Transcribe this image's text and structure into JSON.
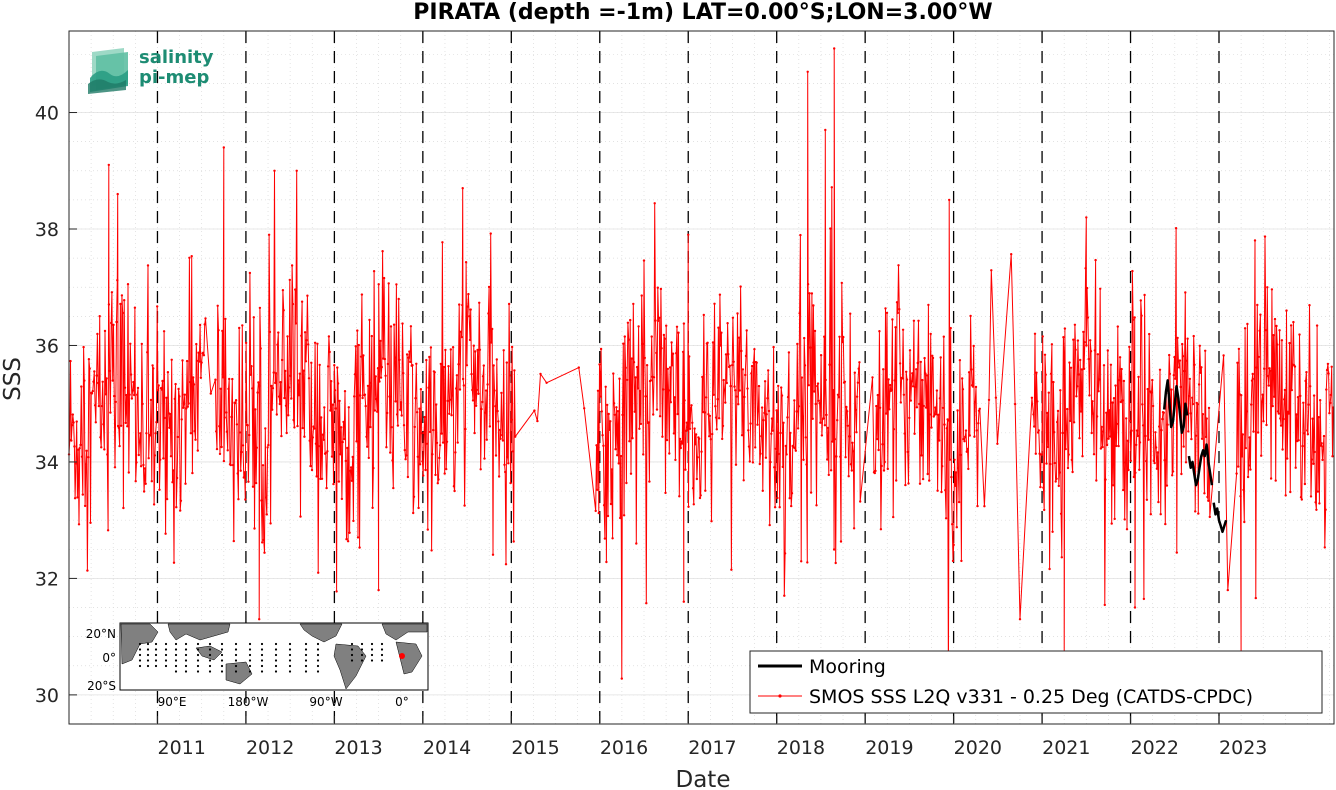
{
  "chart_data": {
    "type": "line",
    "title": "PIRATA (depth =-1m) LAT=0.00°S;LON=3.00°W",
    "xlabel": "Date",
    "ylabel": "SSS",
    "xlim": [
      2010.0,
      2024.3
    ],
    "ylim": [
      29.5,
      41.4
    ],
    "x_ticks": [
      "2011",
      "2012",
      "2013",
      "2014",
      "2015",
      "2016",
      "2017",
      "2018",
      "2019",
      "2020",
      "2021",
      "2022",
      "2023"
    ],
    "y_ticks": [
      30,
      32,
      34,
      36,
      38,
      40
    ],
    "grid": true,
    "year_boundaries_dashed": [
      2011,
      2012,
      2013,
      2014,
      2015,
      2016,
      2017,
      2018,
      2019,
      2020,
      2021,
      2022,
      2023
    ],
    "legend_position": "bottom-right",
    "series": [
      {
        "name": "Mooring",
        "color": "#000000",
        "segments": [
          {
            "x": [
              2022.38,
              2022.4,
              2022.42,
              2022.44,
              2022.46,
              2022.48,
              2022.5,
              2022.52,
              2022.54,
              2022.56,
              2022.58,
              2022.6,
              2022.62,
              2022.64
            ],
            "y": [
              34.9,
              35.2,
              35.4,
              35.0,
              34.6,
              34.7,
              35.0,
              35.3,
              35.1,
              34.8,
              34.5,
              34.6,
              35.0,
              34.8
            ]
          },
          {
            "x": [
              2022.66,
              2022.68,
              2022.7,
              2022.72,
              2022.74,
              2022.76,
              2022.78,
              2022.8,
              2022.82,
              2022.84,
              2022.86,
              2022.88,
              2022.9,
              2022.92
            ],
            "y": [
              34.1,
              33.9,
              34.0,
              33.8,
              33.6,
              33.7,
              33.9,
              34.1,
              34.2,
              34.1,
              34.3,
              34.0,
              33.8,
              33.6
            ]
          },
          {
            "x": [
              2022.94,
              2022.96,
              2022.98,
              2023.0,
              2023.02,
              2023.04,
              2023.06,
              2023.08
            ],
            "y": [
              33.3,
              33.1,
              33.2,
              33.0,
              32.9,
              32.8,
              32.9,
              33.0
            ]
          }
        ]
      },
      {
        "name": "SMOS SSS L2Q v331 - 0.25 Deg (CATDS-CPDC)",
        "color": "#ff0000",
        "style": "line-with-dot-markers",
        "x_start": 2010.0,
        "x_end": 2024.3,
        "n_points": 1650,
        "mean": 34.9,
        "std": 0.95,
        "seasonal_amplitude": 0.5,
        "gaps": [
          [
            2011.55,
            2011.65
          ],
          [
            2015.05,
            2015.95
          ],
          [
            2018.95,
            2019.1
          ],
          [
            2020.3,
            2020.9
          ],
          [
            2022.9,
            2023.2
          ]
        ],
        "peaks": [
          {
            "x": 2010.45,
            "y": 39.1
          },
          {
            "x": 2010.55,
            "y": 38.6
          },
          {
            "x": 2011.75,
            "y": 39.4
          },
          {
            "x": 2012.15,
            "y": 31.3
          },
          {
            "x": 2014.45,
            "y": 38.7
          },
          {
            "x": 2017.0,
            "y": 37.9
          },
          {
            "x": 2018.35,
            "y": 40.7
          },
          {
            "x": 2018.65,
            "y": 41.1
          },
          {
            "x": 2018.55,
            "y": 39.7
          },
          {
            "x": 2019.95,
            "y": 38.5
          },
          {
            "x": 2021.25,
            "y": 30.6
          },
          {
            "x": 2021.5,
            "y": 38.2
          },
          {
            "x": 2022.05,
            "y": 31.5
          },
          {
            "x": 2023.25,
            "y": 30.6
          },
          {
            "x": 2023.1,
            "y": 31.8
          },
          {
            "x": 2020.75,
            "y": 31.3
          },
          {
            "x": 2013.5,
            "y": 31.8
          },
          {
            "x": 2016.95,
            "y": 31.6
          }
        ]
      }
    ]
  },
  "logo": {
    "line1": "salinity",
    "line2": "pi-mep"
  },
  "inset_map": {
    "lat_labels": [
      "20°N",
      "0°",
      "20°S"
    ],
    "lon_labels": [
      "90°E",
      "180°W",
      "90°W",
      "0°"
    ],
    "land_color": "#808080",
    "marker_color": "#ff0000"
  }
}
